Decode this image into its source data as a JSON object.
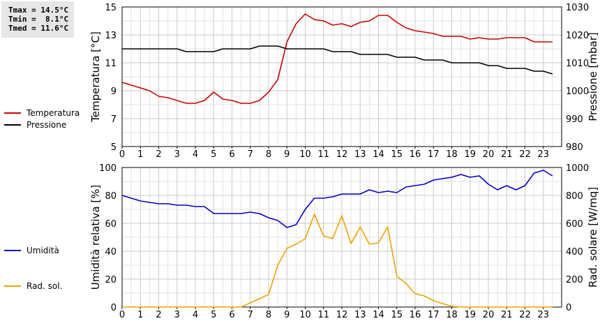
{
  "stats": {
    "tmax": "Tmax = 14.5°C",
    "tmin": "Tmin =  8.1°C",
    "tmed": "Tmed = 11.6°C"
  },
  "legend_top": [
    {
      "label": "Temperatura",
      "color": "#cc0000"
    },
    {
      "label": "Pressione",
      "color": "#000000"
    }
  ],
  "legend_bottom": [
    {
      "label": "Umidità",
      "color": "#0000cc"
    },
    {
      "label": "Rad. sol.",
      "color": "#f0a000"
    }
  ],
  "chart_data": [
    {
      "type": "line",
      "x": [
        0,
        0.5,
        1,
        1.5,
        2,
        2.5,
        3,
        3.5,
        4,
        4.5,
        5,
        5.5,
        6,
        6.5,
        7,
        7.5,
        8,
        8.5,
        9,
        9.5,
        10,
        10.5,
        11,
        11.5,
        12,
        12.5,
        13,
        13.5,
        14,
        14.5,
        15,
        15.5,
        16,
        16.5,
        17,
        17.5,
        18,
        18.5,
        19,
        19.5,
        20,
        20.5,
        21,
        21.5,
        22,
        22.5,
        23,
        23.5
      ],
      "xlim": [
        0,
        24
      ],
      "xticks": [
        "0",
        "1",
        "2",
        "3",
        "4",
        "5",
        "6",
        "7",
        "8",
        "9",
        "10",
        "11",
        "12",
        "13",
        "14",
        "15",
        "16",
        "17",
        "18",
        "19",
        "20",
        "21",
        "22",
        "23"
      ],
      "ylabel": "Temperatura [°C]",
      "ylim": [
        5,
        15
      ],
      "yticks": [
        "5",
        "7",
        "9",
        "11",
        "13",
        "15"
      ],
      "y2label": "Pressione [mbar]",
      "y2lim": [
        980,
        1030
      ],
      "y2ticks": [
        "980",
        "990",
        "1000",
        "1010",
        "1020",
        "1030"
      ],
      "grid": true,
      "series": [
        {
          "name": "Temperatura",
          "axis": "left",
          "color": "#cc0000",
          "values": [
            9.6,
            9.4,
            9.2,
            9.0,
            8.6,
            8.5,
            8.3,
            8.1,
            8.1,
            8.3,
            8.9,
            8.4,
            8.3,
            8.1,
            8.1,
            8.3,
            8.9,
            9.8,
            12.5,
            13.8,
            14.5,
            14.1,
            14.0,
            13.7,
            13.8,
            13.6,
            13.9,
            14.0,
            14.4,
            14.4,
            13.9,
            13.5,
            13.3,
            13.2,
            13.1,
            12.9,
            12.9,
            12.9,
            12.7,
            12.8,
            12.7,
            12.7,
            12.8,
            12.8,
            12.8,
            12.5,
            12.5,
            12.5
          ]
        },
        {
          "name": "Pressione",
          "axis": "right",
          "color": "#000000",
          "values": [
            1015,
            1015,
            1015,
            1015,
            1015,
            1015,
            1015,
            1014,
            1014,
            1014,
            1014,
            1015,
            1015,
            1015,
            1015,
            1016,
            1016,
            1016,
            1015,
            1015,
            1015,
            1015,
            1015,
            1014,
            1014,
            1014,
            1013,
            1013,
            1013,
            1013,
            1012,
            1012,
            1012,
            1011,
            1011,
            1011,
            1010,
            1010,
            1010,
            1010,
            1009,
            1009,
            1008,
            1008,
            1008,
            1007,
            1007,
            1006
          ]
        }
      ]
    },
    {
      "type": "line",
      "x": [
        0,
        0.5,
        1,
        1.5,
        2,
        2.5,
        3,
        3.5,
        4,
        4.5,
        5,
        5.5,
        6,
        6.5,
        7,
        7.5,
        8,
        8.5,
        9,
        9.5,
        10,
        10.5,
        11,
        11.5,
        12,
        12.5,
        13,
        13.5,
        14,
        14.5,
        15,
        15.5,
        16,
        16.5,
        17,
        17.5,
        18,
        18.5,
        19,
        19.5,
        20,
        20.5,
        21,
        21.5,
        22,
        22.5,
        23,
        23.5
      ],
      "xlim": [
        0,
        24
      ],
      "xticks": [
        "0",
        "1",
        "2",
        "3",
        "4",
        "5",
        "6",
        "7",
        "8",
        "9",
        "10",
        "11",
        "12",
        "13",
        "14",
        "15",
        "16",
        "17",
        "18",
        "19",
        "20",
        "21",
        "22",
        "23"
      ],
      "ylabel": "Umidità relativa [%]",
      "ylim": [
        0,
        100
      ],
      "yticks": [
        "0",
        "20",
        "40",
        "60",
        "80",
        "100"
      ],
      "y2label": "Rad. solare [W/mq]",
      "y2lim": [
        0,
        1000
      ],
      "y2ticks": [
        "0",
        "200",
        "400",
        "600",
        "800",
        "1000"
      ],
      "grid": true,
      "series": [
        {
          "name": "Umidità",
          "axis": "left",
          "color": "#0000cc",
          "values": [
            80,
            78,
            76,
            75,
            74,
            74,
            73,
            73,
            72,
            72,
            67,
            67,
            67,
            67,
            68,
            67,
            64,
            62,
            57,
            59,
            70,
            78,
            78,
            79,
            81,
            81,
            81,
            84,
            82,
            83,
            82,
            86,
            87,
            88,
            91,
            92,
            93,
            95,
            93,
            94,
            88,
            84,
            87,
            84,
            87,
            96,
            98,
            94
          ]
        },
        {
          "name": "Rad. sol.",
          "axis": "right",
          "color": "#f0a000",
          "values": [
            0,
            0,
            0,
            0,
            0,
            0,
            0,
            0,
            0,
            0,
            0,
            0,
            0,
            0,
            30,
            60,
            90,
            300,
            420,
            450,
            490,
            665,
            510,
            490,
            655,
            455,
            575,
            450,
            460,
            575,
            220,
            170,
            95,
            80,
            45,
            25,
            5,
            0,
            0,
            0,
            0,
            0,
            0,
            0,
            0,
            0,
            0,
            0
          ]
        }
      ]
    }
  ]
}
